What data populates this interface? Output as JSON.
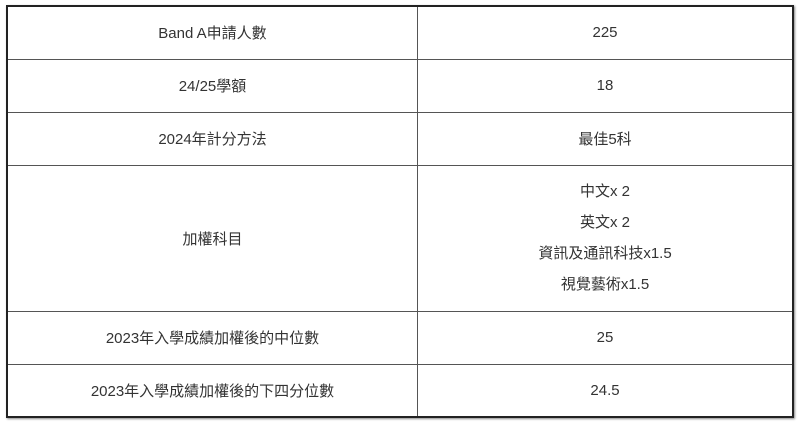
{
  "rows": [
    {
      "label": "Band A申請人數",
      "value": "225"
    },
    {
      "label": "24/25學額",
      "value": "18"
    },
    {
      "label": "2024年計分方法",
      "value": "最佳5科"
    },
    {
      "label": "加權科目",
      "values": [
        "中文x 2",
        "英文x 2",
        "資訊及通訊科技x1.5",
        "視覺藝術x1.5"
      ]
    },
    {
      "label": "2023年入學成績加權後的中位數",
      "value": "25"
    },
    {
      "label": "2023年入學成績加權後的下四分位數",
      "value": "24.5"
    }
  ]
}
